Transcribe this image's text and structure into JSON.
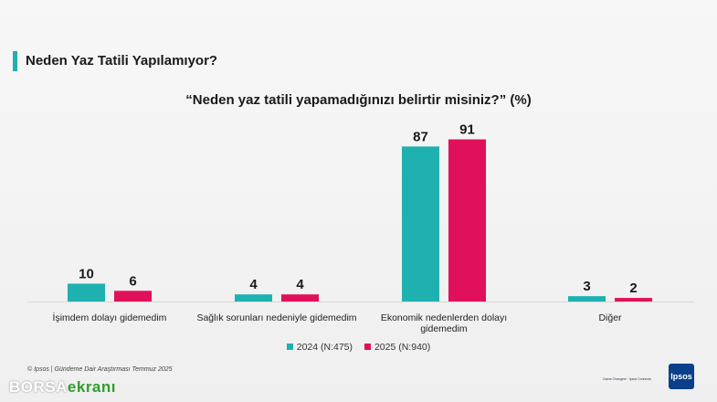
{
  "page": {
    "title": "Neden Yaz Tatili Yapılamıyor?",
    "footnote": "© Ipsos | Gündeme Dair Araştırması Temmuz 2025",
    "watermark": {
      "part1": "BORSA",
      "part2": "ekranı"
    },
    "logo_text": "Ipsos",
    "logo_small_text": "Game Changers · Ipsos Connects"
  },
  "colors": {
    "accent": "#1fb0b0",
    "series_2024": "#1fb0b0",
    "series_2025": "#e0105a"
  },
  "chart_data": {
    "type": "bar",
    "title": "“Neden yaz tatili yapamadığınızı belirtir misiniz?” (%)",
    "categories": [
      [
        "İşimdem dolayı gidemedim"
      ],
      [
        "Sağlık sorunları nedeniyle gidemedim"
      ],
      [
        "Ekonomik nedenlerden dolayı",
        "gidemedim"
      ],
      [
        "Diğer"
      ]
    ],
    "series": [
      {
        "name": "2024 (N:475)",
        "values": [
          10,
          4,
          87,
          3
        ],
        "color": "#1fb0b0"
      },
      {
        "name": "2025 (N:940)",
        "values": [
          6,
          4,
          91,
          2
        ],
        "color": "#e0105a"
      }
    ],
    "ylim": [
      0,
      100
    ],
    "grid": false,
    "legend": "bottom-center",
    "xlabel": "",
    "ylabel": ""
  }
}
